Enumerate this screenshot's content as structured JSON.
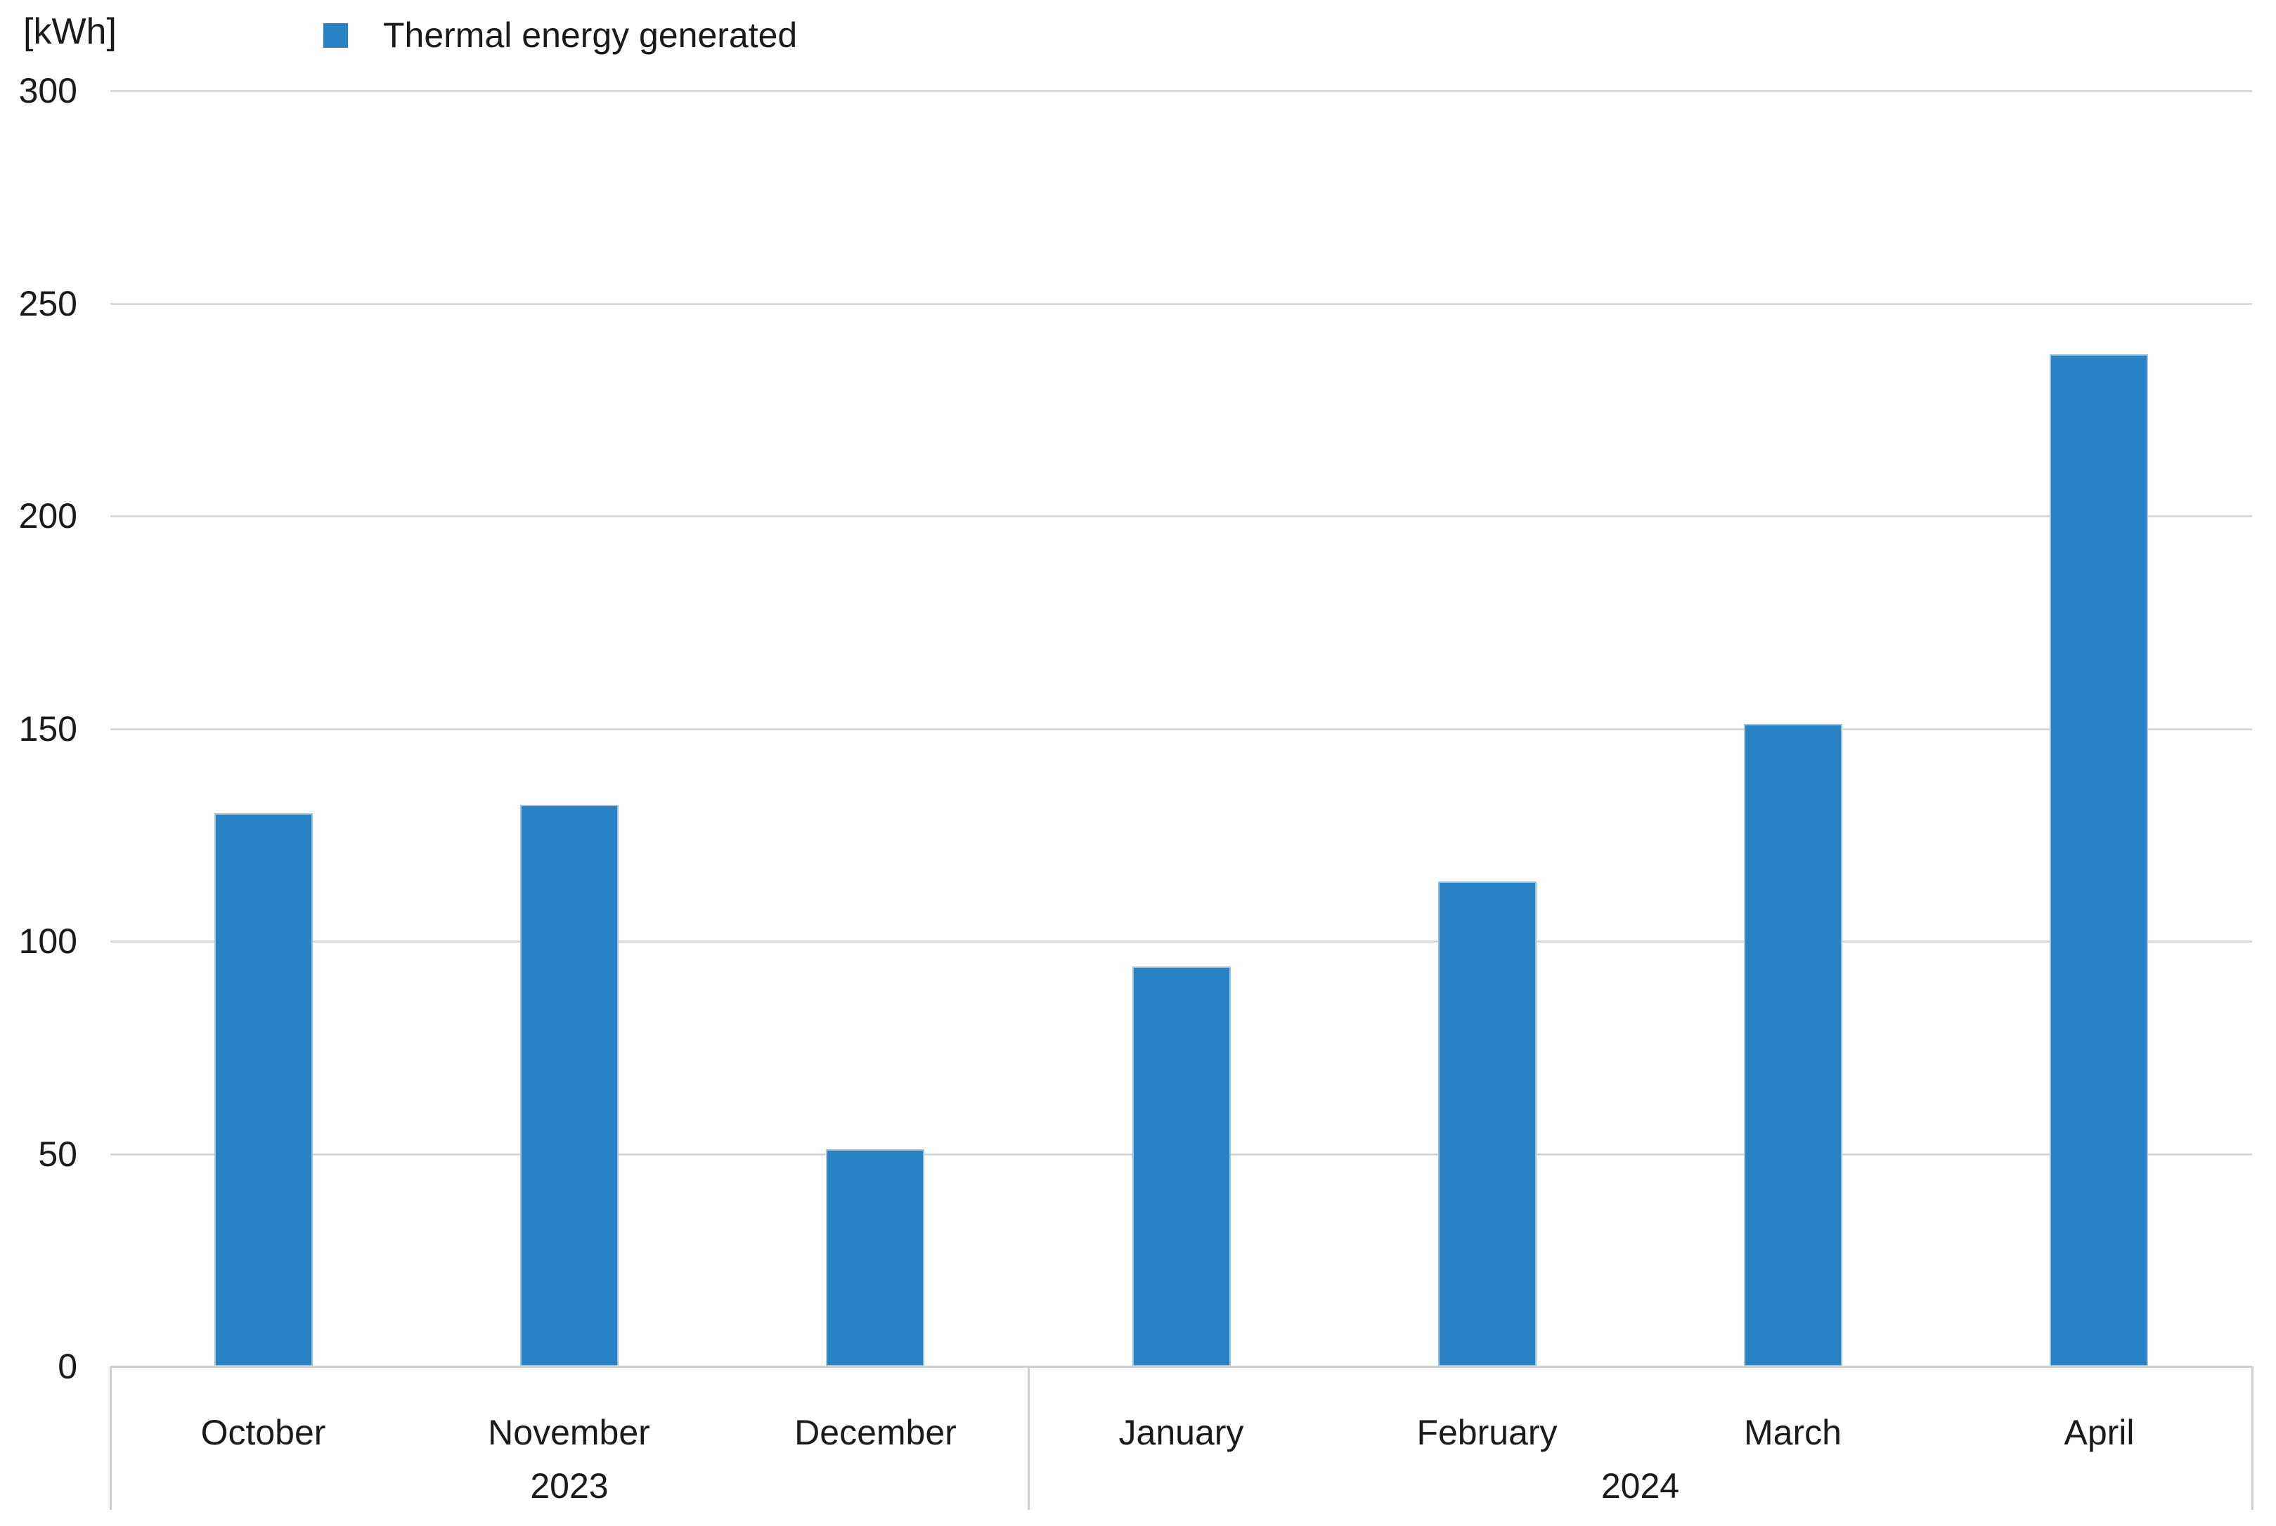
{
  "chart_data": {
    "type": "bar",
    "title": "",
    "unit_label": "[kWh]",
    "legend_position": "top",
    "legend": [
      {
        "name": "Thermal energy generated",
        "color": "#2781C2"
      }
    ],
    "categories": [
      "October",
      "November",
      "December",
      "January",
      "February",
      "March",
      "April"
    ],
    "year_groups": [
      {
        "year": "2023",
        "count": 3
      },
      {
        "year": "2024",
        "count": 4
      }
    ],
    "series": [
      {
        "name": "Thermal energy generated",
        "values": [
          130,
          132,
          51,
          94,
          114,
          151,
          238
        ]
      }
    ],
    "ylim": [
      0,
      300
    ],
    "yticks": [
      0,
      50,
      100,
      150,
      200,
      250,
      300
    ],
    "grid": "horizontal",
    "colors": {
      "bar_fill": "#2781C2",
      "bar_border": "#9DC3E2",
      "gridline": "#D9D9D9",
      "axis_line": "#CFCFCF",
      "text": "#1A1A1A",
      "background": "#FFFFFF"
    }
  }
}
